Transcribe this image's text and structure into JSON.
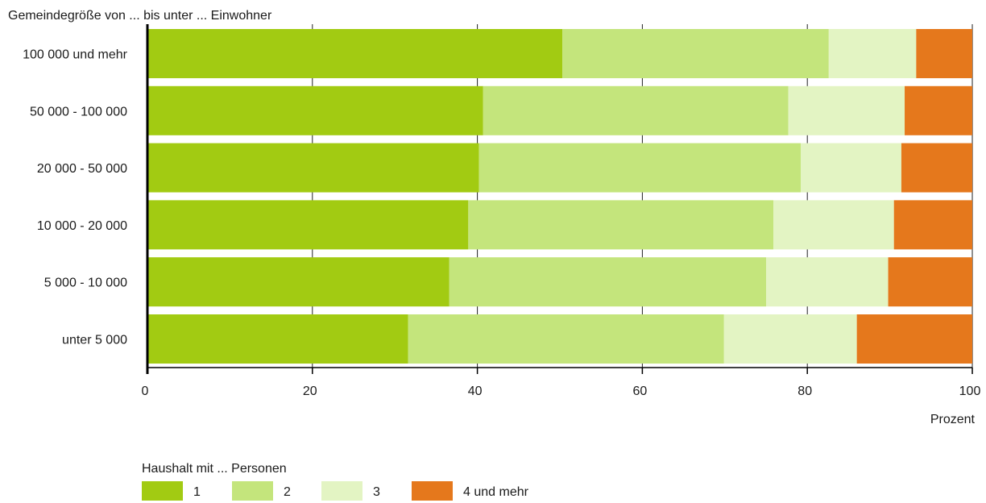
{
  "chart_data": {
    "type": "bar",
    "orientation": "horizontal",
    "stacked": true,
    "y_axis_title": "Gemeindegröße von ... bis unter ... Einwohner",
    "xlabel": "Prozent",
    "xlim": [
      0,
      100
    ],
    "x_ticks": [
      0,
      20,
      40,
      60,
      80,
      100
    ],
    "grid": true,
    "categories": [
      "100 000 und mehr",
      "50 000 - 100 000",
      "20 000 - 50 000",
      "10 000 - 20 000",
      "5 000 - 10 000",
      "unter 5 000"
    ],
    "legend_title": "Haushalt mit ... Personen",
    "legend_position": "bottom",
    "series": [
      {
        "name": "1",
        "color": "#a2cb12",
        "values": [
          50.3,
          40.7,
          40.2,
          38.9,
          36.6,
          31.6
        ]
      },
      {
        "name": "2",
        "color": "#c4e57c",
        "values": [
          32.3,
          37.0,
          39.0,
          37.0,
          38.4,
          38.3
        ]
      },
      {
        "name": "3",
        "color": "#e3f4c3",
        "values": [
          10.6,
          14.1,
          12.2,
          14.6,
          14.8,
          16.1
        ]
      },
      {
        "name": "4 und mehr",
        "color": "#e5781c",
        "values": [
          6.8,
          8.2,
          8.6,
          9.5,
          10.2,
          14.0
        ]
      }
    ]
  }
}
